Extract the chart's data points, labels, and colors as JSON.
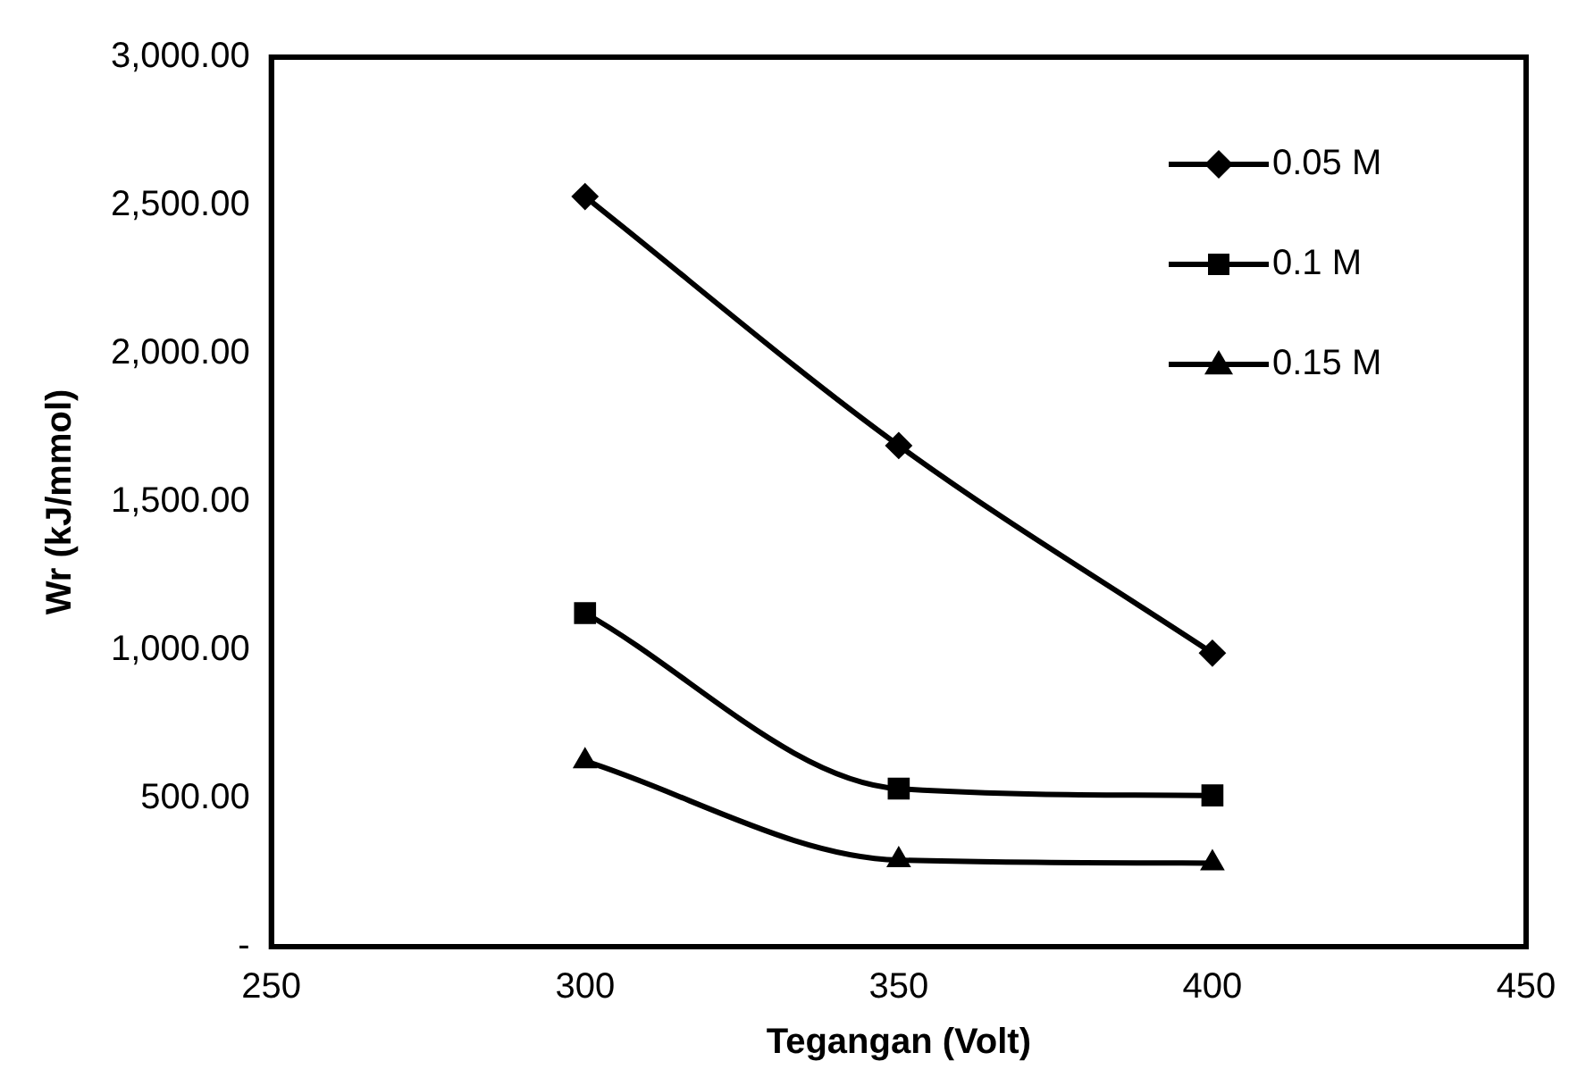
{
  "chart_data": {
    "type": "line",
    "xlabel": "Tegangan (Volt)",
    "ylabel": "Wr (kJ/mmol)",
    "x": [
      300,
      350,
      400
    ],
    "series": [
      {
        "name": "0.05 M",
        "color": "#000000",
        "marker": "diamond",
        "values": [
          2530,
          1690,
          990
        ]
      },
      {
        "name": "0.1 M",
        "color": "#000000",
        "marker": "square",
        "values": [
          1125,
          533,
          510
        ]
      },
      {
        "name": "0.15 M",
        "color": "#000000",
        "marker": "triangle",
        "values": [
          626,
          292,
          282
        ]
      }
    ],
    "xlim": [
      250,
      450
    ],
    "xticks": [
      250,
      300,
      350,
      400,
      450
    ],
    "ylim": [
      0,
      3000
    ],
    "yticks": [
      {
        "value": 0,
        "label": "-"
      },
      {
        "value": 500,
        "label": "500.00"
      },
      {
        "value": 1000,
        "label": "1,000.00"
      },
      {
        "value": 1500,
        "label": "1,500.00"
      },
      {
        "value": 2000,
        "label": "2,000.00"
      },
      {
        "value": 2500,
        "label": "2,500.00"
      },
      {
        "value": 3000,
        "label": "3,000.00"
      }
    ],
    "grid": false,
    "legend": "top right",
    "line_style": "solid"
  }
}
